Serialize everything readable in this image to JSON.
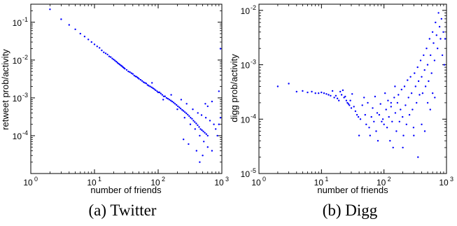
{
  "chart_data": [
    {
      "type": "scatter",
      "caption": "(a) Twitter",
      "xlabel": "number of friends",
      "ylabel": "retweet prob/activity",
      "xscale": "log",
      "yscale": "log",
      "xlim": [
        1,
        1000
      ],
      "ylim": [
        1e-05,
        0.3
      ],
      "xticks": [
        1,
        10,
        100,
        1000
      ],
      "yticks": [
        0.0001,
        0.001,
        0.01,
        0.1
      ],
      "xtick_labels": [
        {
          "base": "10",
          "exp": "0"
        },
        {
          "base": "10",
          "exp": "1"
        },
        {
          "base": "10",
          "exp": "2"
        },
        {
          "base": "10",
          "exp": "3"
        }
      ],
      "ytick_labels": [
        {
          "base": "10",
          "exp": "-4"
        },
        {
          "base": "10",
          "exp": "-3"
        },
        {
          "base": "10",
          "exp": "-2"
        },
        {
          "base": "10",
          "exp": "-1"
        }
      ],
      "grid": false,
      "marker_color": "#0000ff",
      "points": [
        [
          2,
          0.22
        ],
        [
          3,
          0.12
        ],
        [
          4,
          0.085
        ],
        [
          5,
          0.065
        ],
        [
          6,
          0.05
        ],
        [
          7,
          0.042
        ],
        [
          8,
          0.035
        ],
        [
          9,
          0.03
        ],
        [
          10,
          0.026
        ],
        [
          11,
          0.023
        ],
        [
          12,
          0.021
        ],
        [
          13,
          0.018
        ],
        [
          14,
          0.016
        ],
        [
          15,
          0.015
        ],
        [
          16,
          0.014
        ],
        [
          17,
          0.0125
        ],
        [
          18,
          0.012
        ],
        [
          19,
          0.011
        ],
        [
          20,
          0.0103
        ],
        [
          21,
          0.0097
        ],
        [
          22,
          0.0091
        ],
        [
          23,
          0.0085
        ],
        [
          24,
          0.008
        ],
        [
          25,
          0.0076
        ],
        [
          26,
          0.0072
        ],
        [
          27,
          0.0069
        ],
        [
          28,
          0.0065
        ],
        [
          29,
          0.0062
        ],
        [
          30,
          0.0059
        ],
        [
          32,
          0.0055
        ],
        [
          34,
          0.005
        ],
        [
          36,
          0.0048
        ],
        [
          38,
          0.0045
        ],
        [
          40,
          0.0043
        ],
        [
          42,
          0.0039
        ],
        [
          44,
          0.0037
        ],
        [
          46,
          0.0036
        ],
        [
          48,
          0.0034
        ],
        [
          50,
          0.0032
        ],
        [
          53,
          0.003
        ],
        [
          56,
          0.0028
        ],
        [
          59,
          0.0026
        ],
        [
          62,
          0.0025
        ],
        [
          65,
          0.0024
        ],
        [
          68,
          0.0022
        ],
        [
          71,
          0.0021
        ],
        [
          75,
          0.002
        ],
        [
          79,
          0.0019
        ],
        [
          83,
          0.0018
        ],
        [
          87,
          0.0017
        ],
        [
          91,
          0.0016
        ],
        [
          96,
          0.0015
        ],
        [
          100,
          0.0014
        ],
        [
          105,
          0.0014
        ],
        [
          110,
          0.0013
        ],
        [
          116,
          0.0012
        ],
        [
          122,
          0.0011
        ],
        [
          128,
          0.0011
        ],
        [
          135,
          0.001
        ],
        [
          142,
          0.00095
        ],
        [
          150,
          0.0009
        ],
        [
          158,
          0.00085
        ],
        [
          166,
          0.0008
        ],
        [
          175,
          0.00075
        ],
        [
          184,
          0.0007
        ],
        [
          194,
          0.00065
        ],
        [
          204,
          0.0006
        ],
        [
          215,
          0.00056
        ],
        [
          226,
          0.00052
        ],
        [
          238,
          0.00048
        ],
        [
          250,
          0.00045
        ],
        [
          263,
          0.00042
        ],
        [
          277,
          0.00039
        ],
        [
          292,
          0.00036
        ],
        [
          307,
          0.00033
        ],
        [
          323,
          0.0003
        ],
        [
          340,
          0.00028
        ],
        [
          358,
          0.00025
        ],
        [
          376,
          0.00023
        ],
        [
          396,
          0.00021
        ],
        [
          417,
          0.00019
        ],
        [
          439,
          0.00017
        ],
        [
          462,
          0.00015
        ],
        [
          486,
          0.00014
        ],
        [
          512,
          0.00013
        ],
        [
          540,
          0.00012
        ],
        [
          570,
          0.00011
        ],
        [
          600,
          0.0001
        ],
        [
          80,
          0.0025
        ],
        [
          120,
          0.0009
        ],
        [
          160,
          0.0012
        ],
        [
          200,
          0.0005
        ],
        [
          230,
          0.0009
        ],
        [
          260,
          0.0003
        ],
        [
          280,
          0.0007
        ],
        [
          320,
          0.0002
        ],
        [
          350,
          0.0005
        ],
        [
          380,
          0.00015
        ],
        [
          420,
          0.0004
        ],
        [
          450,
          0.0001
        ],
        [
          480,
          0.00035
        ],
        [
          520,
          7e-05
        ],
        [
          560,
          0.0003
        ],
        [
          600,
          5e-05
        ],
        [
          650,
          0.00025
        ],
        [
          700,
          4e-05
        ],
        [
          750,
          0.0002
        ],
        [
          800,
          0.00015
        ],
        [
          850,
          0.0001
        ],
        [
          900,
          0.0002
        ],
        [
          950,
          0.0003
        ],
        [
          500,
          3e-05
        ],
        [
          450,
          2e-05
        ],
        [
          400,
          4e-05
        ],
        [
          300,
          6e-05
        ],
        [
          250,
          8e-05
        ],
        [
          700,
          0.0008
        ],
        [
          600,
          0.0006
        ],
        [
          550,
          0.0007
        ],
        [
          900,
          0.0015
        ],
        [
          950,
          0.02
        ]
      ]
    },
    {
      "type": "scatter",
      "caption": "(b) Digg",
      "xlabel": "number of friends",
      "ylabel": "digg prob/activity",
      "xscale": "log",
      "yscale": "log",
      "xlim": [
        1,
        1000
      ],
      "ylim": [
        1e-05,
        0.013
      ],
      "xticks": [
        1,
        10,
        100,
        1000
      ],
      "yticks": [
        1e-05,
        0.0001,
        0.001,
        0.01
      ],
      "xtick_labels": [
        {
          "base": "10",
          "exp": "0"
        },
        {
          "base": "10",
          "exp": "1"
        },
        {
          "base": "10",
          "exp": "2"
        },
        {
          "base": "10",
          "exp": "3"
        }
      ],
      "ytick_labels": [
        {
          "base": "10",
          "exp": "-5"
        },
        {
          "base": "10",
          "exp": "-4"
        },
        {
          "base": "10",
          "exp": "-3"
        },
        {
          "base": "10",
          "exp": "-2"
        }
      ],
      "grid": false,
      "marker_color": "#0000ff",
      "points": [
        [
          2,
          0.0004
        ],
        [
          3,
          0.00045
        ],
        [
          4,
          0.00032
        ],
        [
          5,
          0.00033
        ],
        [
          6,
          0.00031
        ],
        [
          7,
          0.00032
        ],
        [
          8,
          0.0003
        ],
        [
          9,
          0.0003
        ],
        [
          10,
          0.00031
        ],
        [
          11,
          0.0003
        ],
        [
          12,
          0.00029
        ],
        [
          13,
          0.00028
        ],
        [
          14,
          0.00027
        ],
        [
          15,
          0.00033
        ],
        [
          16,
          0.00025
        ],
        [
          17,
          0.00027
        ],
        [
          18,
          0.00024
        ],
        [
          19,
          0.00022
        ],
        [
          20,
          0.00032
        ],
        [
          21,
          0.00028
        ],
        [
          22,
          0.00034
        ],
        [
          23,
          0.00025
        ],
        [
          24,
          0.00026
        ],
        [
          25,
          0.00022
        ],
        [
          26,
          0.0002
        ],
        [
          27,
          0.00019
        ],
        [
          28,
          0.00018
        ],
        [
          29,
          0.00022
        ],
        [
          30,
          0.00016
        ],
        [
          31,
          0.00029
        ],
        [
          33,
          0.00017
        ],
        [
          35,
          0.00014
        ],
        [
          37,
          0.00012
        ],
        [
          39,
          0.00011
        ],
        [
          40,
          5e-05
        ],
        [
          42,
          0.0001
        ],
        [
          45,
          0.00018
        ],
        [
          48,
          0.00025
        ],
        [
          50,
          0.00012
        ],
        [
          52,
          8e-05
        ],
        [
          55,
          0.0002
        ],
        [
          58,
          7e-05
        ],
        [
          60,
          5e-05
        ],
        [
          63,
          0.00011
        ],
        [
          66,
          0.00016
        ],
        [
          69,
          9e-05
        ],
        [
          72,
          0.00026
        ],
        [
          75,
          6e-05
        ],
        [
          78,
          0.00013
        ],
        [
          80,
          4e-05
        ],
        [
          84,
          0.00012
        ],
        [
          88,
          0.00019
        ],
        [
          92,
          9e-05
        ],
        [
          96,
          0.0001
        ],
        [
          100,
          8e-05
        ],
        [
          104,
          0.0003
        ],
        [
          108,
          0.00015
        ],
        [
          112,
          7e-05
        ],
        [
          116,
          0.00022
        ],
        [
          120,
          0.00011
        ],
        [
          125,
          4e-05
        ],
        [
          130,
          0.00017
        ],
        [
          135,
          9e-05
        ],
        [
          140,
          3e-05
        ],
        [
          146,
          0.00025
        ],
        [
          152,
          0.00013
        ],
        [
          158,
          6e-05
        ],
        [
          164,
          0.0002
        ],
        [
          170,
          0.00028
        ],
        [
          177,
          9e-05
        ],
        [
          184,
          0.00015
        ],
        [
          191,
          0.00035
        ],
        [
          198,
          0.00011
        ],
        [
          205,
          5e-05
        ],
        [
          213,
          0.0004
        ],
        [
          221,
          0.00018
        ],
        [
          229,
          8e-05
        ],
        [
          238,
          0.00052
        ],
        [
          247,
          0.00025
        ],
        [
          256,
          0.00012
        ],
        [
          266,
          0.0006
        ],
        [
          276,
          0.0003
        ],
        [
          286,
          0.00015
        ],
        [
          297,
          7e-05
        ],
        [
          308,
          0.0007
        ],
        [
          320,
          0.0004
        ],
        [
          332,
          0.0002
        ],
        [
          345,
          0.0009
        ],
        [
          358,
          0.0005
        ],
        [
          371,
          0.00028
        ],
        [
          385,
          0.0012
        ],
        [
          400,
          0.0006
        ],
        [
          415,
          0.0003
        ],
        [
          430,
          0.0015
        ],
        [
          446,
          0.0008
        ],
        [
          463,
          0.0004
        ],
        [
          480,
          0.002
        ],
        [
          498,
          0.001
        ],
        [
          517,
          0.0005
        ],
        [
          536,
          0.003
        ],
        [
          556,
          0.0015
        ],
        [
          577,
          0.0007
        ],
        [
          599,
          0.004
        ],
        [
          621,
          0.0025
        ],
        [
          644,
          0.0012
        ],
        [
          668,
          0.006
        ],
        [
          693,
          0.0035
        ],
        [
          719,
          0.002
        ],
        [
          746,
          0.009
        ],
        [
          774,
          0.005
        ],
        [
          803,
          0.003
        ],
        [
          830,
          0.007
        ],
        [
          860,
          0.0015
        ],
        [
          890,
          0.004
        ],
        [
          920,
          0.001
        ],
        [
          950,
          0.003
        ],
        [
          130,
          0.0002
        ],
        [
          150,
          0.0004
        ],
        [
          200,
          3e-05
        ],
        [
          300,
          5e-05
        ],
        [
          350,
          2e-05
        ],
        [
          400,
          8e-05
        ],
        [
          450,
          6e-05
        ],
        [
          500,
          0.0002
        ],
        [
          550,
          0.00015
        ],
        [
          600,
          0.0003
        ],
        [
          650,
          0.00025
        ]
      ]
    }
  ]
}
